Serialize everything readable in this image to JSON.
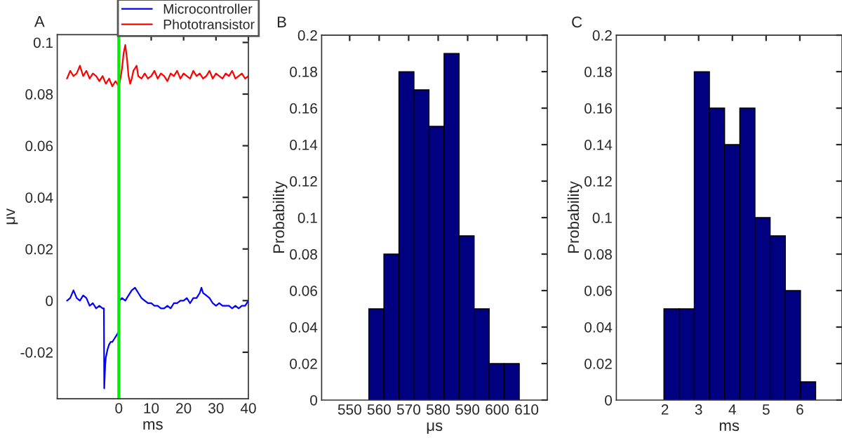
{
  "chart_data": [
    {
      "type": "line",
      "title": "A",
      "xlabel": "ms",
      "ylabel": "μv",
      "xlim": [
        -19,
        40
      ],
      "xticks": [
        0,
        10,
        20,
        30,
        40
      ],
      "ylim": [
        -0.038,
        0.103
      ],
      "yticks": [
        -0.02,
        0,
        0.02,
        0.04,
        0.06,
        0.08,
        0.1
      ],
      "legend": "top right",
      "grid": false,
      "series": [
        {
          "name": "Microcontroller",
          "color": "#0000ff",
          "x": [
            -16,
            -15,
            -14,
            -13,
            -12,
            -11,
            -10,
            -9,
            -8,
            -7,
            -6,
            -5,
            -4.6,
            -4.5,
            -4.2,
            -4,
            -3.5,
            -3,
            -2.5,
            -2,
            -1.5,
            -1,
            -0.5,
            0,
            0.2,
            1,
            2,
            3,
            4,
            5,
            6,
            7,
            8,
            9,
            10,
            11,
            12,
            13,
            14,
            15,
            16,
            17,
            18,
            19,
            20,
            21,
            22,
            23,
            24,
            25,
            25.5,
            26,
            27,
            28,
            29,
            30,
            31,
            32,
            33,
            34,
            35,
            36,
            37,
            38,
            39,
            40
          ],
          "values": [
            0.0,
            0.001,
            0.004,
            0.001,
            0.0,
            0.002,
            0.001,
            -0.002,
            -0.001,
            -0.003,
            -0.002,
            -0.003,
            -0.003,
            -0.034,
            -0.025,
            -0.022,
            -0.019,
            -0.017,
            -0.016,
            -0.016,
            -0.015,
            -0.014,
            -0.013,
            -0.012,
            0.0,
            0.001,
            0.0,
            0.002,
            0.004,
            0.005,
            0.003,
            0.001,
            0.0,
            -0.001,
            -0.001,
            -0.002,
            -0.002,
            -0.003,
            -0.003,
            -0.002,
            -0.003,
            -0.001,
            -0.001,
            0.0,
            0.0,
            0.001,
            -0.001,
            0.001,
            0.001,
            0.003,
            0.005,
            0.003,
            0.002,
            0.001,
            -0.001,
            -0.002,
            -0.001,
            -0.002,
            -0.002,
            -0.002,
            -0.003,
            -0.002,
            -0.003,
            -0.002,
            -0.002,
            0.0
          ]
        },
        {
          "name": "Phototransistor",
          "color": "#ff0000",
          "x": [
            -16,
            -15,
            -14,
            -13,
            -12,
            -11,
            -10,
            -9,
            -8,
            -7,
            -6,
            -5,
            -4,
            -3,
            -2,
            -1,
            0,
            0.5,
            1,
            1.5,
            2,
            2.5,
            3,
            3.5,
            4,
            4.5,
            5,
            5.5,
            6,
            7,
            8,
            9,
            10,
            11,
            12,
            13,
            14,
            15,
            16,
            17,
            18,
            19,
            20,
            21,
            22,
            23,
            24,
            25,
            26,
            27,
            28,
            29,
            30,
            31,
            32,
            33,
            34,
            35,
            36,
            37,
            38,
            39,
            40
          ],
          "values": [
            0.086,
            0.089,
            0.087,
            0.088,
            0.091,
            0.087,
            0.089,
            0.086,
            0.088,
            0.087,
            0.085,
            0.087,
            0.084,
            0.086,
            0.083,
            0.085,
            0.083,
            0.086,
            0.09,
            0.096,
            0.099,
            0.094,
            0.087,
            0.084,
            0.086,
            0.089,
            0.09,
            0.091,
            0.087,
            0.086,
            0.088,
            0.086,
            0.087,
            0.089,
            0.086,
            0.088,
            0.087,
            0.085,
            0.088,
            0.087,
            0.089,
            0.086,
            0.088,
            0.087,
            0.086,
            0.089,
            0.087,
            0.088,
            0.086,
            0.087,
            0.089,
            0.086,
            0.088,
            0.087,
            0.086,
            0.088,
            0.087,
            0.089,
            0.086,
            0.087,
            0.088,
            0.086,
            0.087
          ]
        }
      ],
      "ref_lines": [
        {
          "axis": "x",
          "value": 0,
          "color": "#00ee00"
        }
      ]
    },
    {
      "type": "histogram",
      "title": "B",
      "xlabel": "μs",
      "ylabel": "Probability",
      "color": "#000080",
      "xlim": [
        540.5,
        617
      ],
      "xticks": [
        550,
        560,
        570,
        580,
        590,
        600,
        610
      ],
      "ylim": [
        0,
        0.2
      ],
      "yticks": [
        0,
        0.02,
        0.04,
        0.06,
        0.08,
        0.1,
        0.12,
        0.14,
        0.16,
        0.18,
        0.2
      ],
      "bins": [
        556.5,
        561.6,
        566.7,
        571.8,
        576.9,
        582.0,
        587.1,
        592.2,
        597.3,
        602.4,
        607.5
      ],
      "values": [
        0.05,
        0.08,
        0.18,
        0.17,
        0.15,
        0.19,
        0.09,
        0.05,
        0.02,
        0.02
      ]
    },
    {
      "type": "histogram",
      "title": "C",
      "xlabel": "ms",
      "ylabel": "Probability",
      "color": "#000080",
      "xlim": [
        0.56,
        7.25
      ],
      "xticks": [
        2,
        3,
        4,
        5,
        6
      ],
      "ylim": [
        0,
        0.2
      ],
      "yticks": [
        0,
        0.02,
        0.04,
        0.06,
        0.08,
        0.1,
        0.12,
        0.14,
        0.16,
        0.18,
        0.2
      ],
      "bins": [
        1.97,
        2.42,
        2.87,
        3.32,
        3.77,
        4.22,
        4.67,
        5.12,
        5.57,
        6.02,
        6.47
      ],
      "values": [
        0.05,
        0.05,
        0.18,
        0.16,
        0.14,
        0.16,
        0.1,
        0.09,
        0.06,
        0.01
      ]
    }
  ]
}
